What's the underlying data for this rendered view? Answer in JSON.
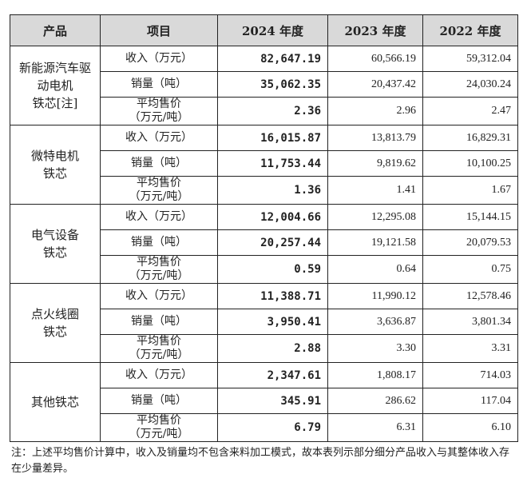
{
  "header": [
    "产品",
    "项目",
    "2024 年度",
    "2023 年度",
    "2022 年度"
  ],
  "items": {
    "rev": "收入（万元）",
    "vol": "销量（吨）",
    "price1": "平均售价",
    "price2": "（万元/吨）"
  },
  "groups": [
    {
      "name": "新能源汽车驱动电机铁芯[注]",
      "rows": [
        [
          "82,647.19",
          "60,566.19",
          "59,312.04"
        ],
        [
          "35,062.35",
          "20,437.42",
          "24,030.24"
        ],
        [
          "2.36",
          "2.96",
          "2.47"
        ]
      ]
    },
    {
      "name": "微特电机铁芯",
      "rows": [
        [
          "16,015.87",
          "13,813.79",
          "16,829.31"
        ],
        [
          "11,753.44",
          "9,819.62",
          "10,100.25"
        ],
        [
          "1.36",
          "1.41",
          "1.67"
        ]
      ]
    },
    {
      "name": "电气设备铁芯",
      "rows": [
        [
          "12,004.66",
          "12,295.08",
          "15,144.15"
        ],
        [
          "20,257.44",
          "19,121.58",
          "20,079.53"
        ],
        [
          "0.59",
          "0.64",
          "0.75"
        ]
      ]
    },
    {
      "name": "点火线圈铁芯",
      "rows": [
        [
          "11,388.71",
          "11,990.12",
          "12,578.46"
        ],
        [
          "3,950.41",
          "3,636.87",
          "3,801.34"
        ],
        [
          "2.88",
          "3.30",
          "3.31"
        ]
      ]
    },
    {
      "name": "其他铁芯",
      "rows": [
        [
          "2,347.61",
          "1,808.17",
          "714.03"
        ],
        [
          "345.91",
          "286.62",
          "117.04"
        ],
        [
          "6.79",
          "6.31",
          "6.10"
        ]
      ]
    }
  ],
  "note": "注：上述平均售价计算中，收入及销量均不包含来料加工模式，故本表列示部分细分产品收入与其整体收入存在少量差异。"
}
